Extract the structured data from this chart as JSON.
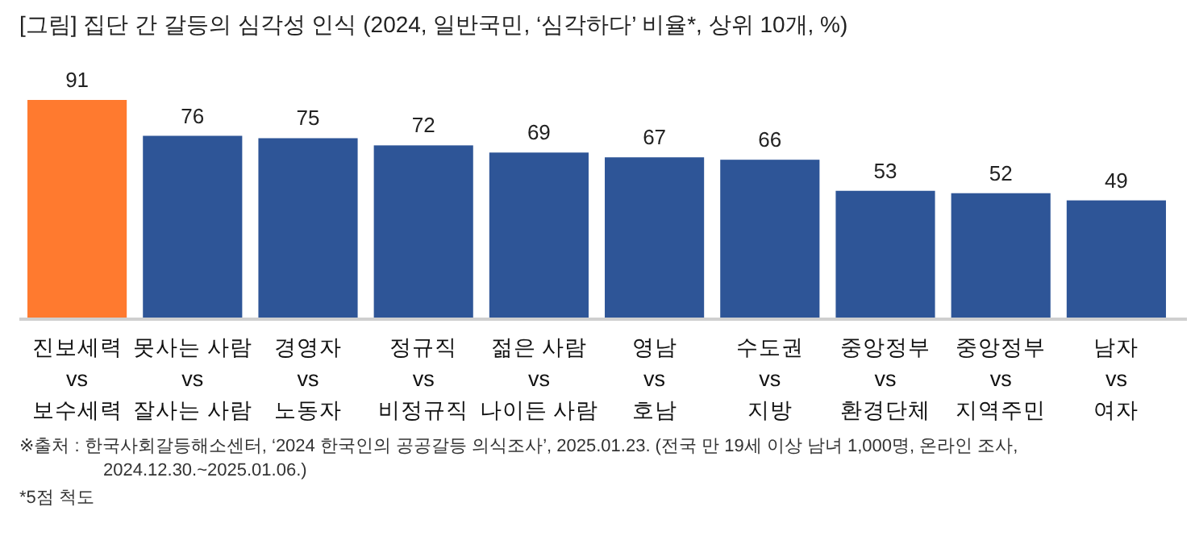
{
  "chart_data": {
    "type": "bar",
    "title": "[그림] 집단 간 갈등의 심각성 인식 (2024, 일반국민, ‘심각하다’ 비율*, 상위 10개, %)",
    "categories": [
      "진보세력\nvs\n보수세력",
      "못사는 사람\nvs\n잘사는 사람",
      "경영자\nvs\n노동자",
      "정규직\nvs\n비정규직",
      "젊은 사람\nvs\n나이든 사람",
      "영남\nvs\n호남",
      "수도권\nvs\n지방",
      "중앙정부\nvs\n환경단체",
      "중앙정부\nvs\n지역주민",
      "남자\nvs\n여자"
    ],
    "values": [
      91,
      76,
      75,
      72,
      69,
      67,
      66,
      53,
      52,
      49
    ],
    "colors": [
      "#ff7a2f",
      "#2e5597",
      "#2e5597",
      "#2e5597",
      "#2e5597",
      "#2e5597",
      "#2e5597",
      "#2e5597",
      "#2e5597",
      "#2e5597"
    ],
    "data_labels": true,
    "tick_labels": "x",
    "annotations": [
      "※출처 : 한국사회갈등해소센터, ‘2024 한국인의 공공갈등 의식조사’, 2025.01.23. (전국 만 19세 이상 남녀 1,000명, 온라인 조사, 2024.12.30.~2025.01.06.)",
      "*5점 척도"
    ]
  }
}
